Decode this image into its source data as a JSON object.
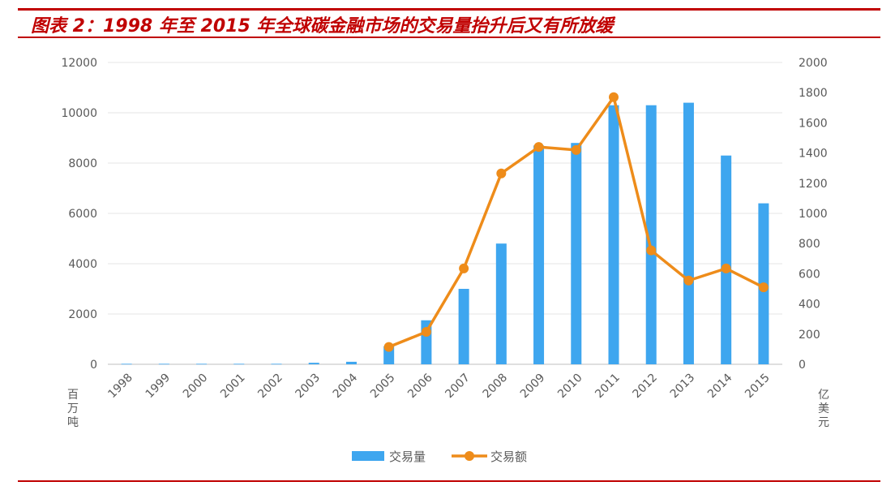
{
  "figure": {
    "title": "图表 2：1998 年至 2015 年全球碳金融市场的交易量抬升后又有所放缓"
  },
  "chart_data": {
    "type": "bar+line",
    "categories": [
      "1998",
      "1999",
      "2000",
      "2001",
      "2002",
      "2003",
      "2004",
      "2005",
      "2006",
      "2007",
      "2008",
      "2009",
      "2010",
      "2011",
      "2012",
      "2013",
      "2014",
      "2015"
    ],
    "series": [
      {
        "name": "交易量",
        "type": "bar",
        "axis": "left",
        "color": "#3ea6ef",
        "values": [
          20,
          20,
          20,
          20,
          20,
          60,
          100,
          720,
          1750,
          3000,
          4800,
          8700,
          8800,
          10300,
          10300,
          10400,
          8300,
          6400
        ]
      },
      {
        "name": "交易额",
        "type": "line",
        "axis": "right",
        "color": "#ee8c1a",
        "values": [
          null,
          null,
          null,
          null,
          null,
          null,
          null,
          115,
          215,
          635,
          1265,
          1440,
          1420,
          1770,
          755,
          555,
          635,
          510
        ]
      }
    ],
    "y_left": {
      "unit": "百万吨",
      "ylim": [
        0,
        12000
      ],
      "ticks": [
        "0",
        "2000",
        "4000",
        "6000",
        "8000",
        "10000",
        "12000"
      ]
    },
    "y_right": {
      "unit": "亿美元",
      "ylim": [
        0,
        2000
      ],
      "ticks": [
        "0",
        "200",
        "400",
        "600",
        "800",
        "1000",
        "1200",
        "1400",
        "1600",
        "1800",
        "2000"
      ]
    },
    "grid": true,
    "legend_position": "bottom"
  }
}
